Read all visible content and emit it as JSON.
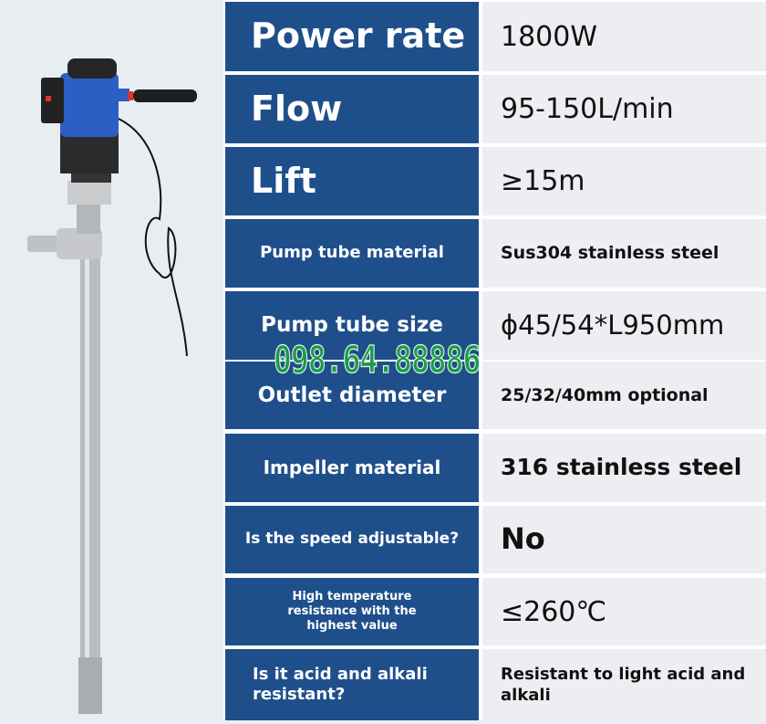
{
  "specs": [
    {
      "label": "Power rate",
      "value": "1800W"
    },
    {
      "label": "Flow",
      "value": "95-150L/min"
    },
    {
      "label": "Lift",
      "value": "≥15m"
    },
    {
      "label": "Pump tube material",
      "value": "Sus304 stainless steel"
    },
    {
      "label": "Pump tube size",
      "value": "ϕ45/54*L950mm"
    },
    {
      "label": "Outlet diameter",
      "value": "25/32/40mm optional"
    },
    {
      "label": "Impeller material",
      "value": "316 stainless steel"
    },
    {
      "label": "Is the speed adjustable?",
      "value": "No"
    },
    {
      "label": "High temperature resistance with the highest value",
      "value": "≤260℃"
    },
    {
      "label": "Is it acid and alkali resistant?",
      "value": "Resistant to light acid and alkali"
    }
  ],
  "watermark": "098.64.88886",
  "colors": {
    "label_bg": "#1f4f8b",
    "value_bg": "#eceef1",
    "watermark": "#1a9b4b"
  }
}
